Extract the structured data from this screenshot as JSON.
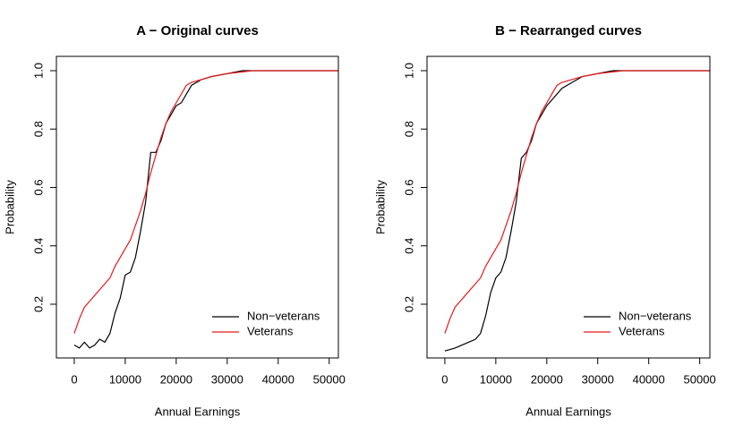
{
  "chart_data": [
    {
      "type": "line",
      "title": "A − Original curves",
      "x_label": "Annual Earnings",
      "y_label": "Probability",
      "xlim": [
        -3500,
        51800
      ],
      "ylim": [
        0.016,
        1.049
      ],
      "xticks": [
        0,
        10000,
        20000,
        30000,
        40000,
        50000
      ],
      "yticks": [
        0.2,
        0.4,
        0.6,
        0.8,
        {
          "value": 1,
          "label": "1.0"
        }
      ],
      "legend": "bottomright",
      "series": [
        {
          "name": "Non−veterans",
          "color": "#000000",
          "x": [
            0,
            1000,
            2000,
            3000,
            4000,
            5000,
            6000,
            7000,
            8000,
            9000,
            10000,
            11000,
            12000,
            13000,
            14000,
            15000,
            16000,
            17000,
            18000,
            19000,
            20000,
            21000,
            22000,
            23000,
            24000,
            25000,
            27000,
            30000,
            33000,
            36000,
            52000
          ],
          "values": [
            0.06,
            0.05,
            0.07,
            0.05,
            0.06,
            0.08,
            0.07,
            0.1,
            0.17,
            0.22,
            0.3,
            0.31,
            0.36,
            0.45,
            0.55,
            0.72,
            0.72,
            0.76,
            0.82,
            0.85,
            0.88,
            0.89,
            0.92,
            0.95,
            0.96,
            0.97,
            0.98,
            0.99,
            1,
            1,
            1
          ]
        },
        {
          "name": "Veterans",
          "color": "#e41a1c",
          "x": [
            0,
            1000,
            2000,
            3000,
            4000,
            5000,
            6000,
            7000,
            8000,
            9000,
            10000,
            11000,
            12000,
            13000,
            14000,
            15000,
            16000,
            17000,
            18000,
            19000,
            20000,
            21000,
            22000,
            23000,
            25000,
            27000,
            30000,
            35000,
            52000
          ],
          "values": [
            0.1,
            0.15,
            0.19,
            0.21,
            0.23,
            0.25,
            0.27,
            0.29,
            0.33,
            0.36,
            0.39,
            0.42,
            0.47,
            0.52,
            0.58,
            0.65,
            0.71,
            0.77,
            0.82,
            0.86,
            0.89,
            0.92,
            0.95,
            0.96,
            0.97,
            0.98,
            0.99,
            1,
            1
          ]
        }
      ]
    },
    {
      "type": "line",
      "title": "B − Rearranged curves",
      "x_label": "Annual Earnings",
      "y_label": "Probability",
      "xlim": [
        -3500,
        52000
      ],
      "ylim": [
        0.016,
        1.049
      ],
      "xticks": [
        0,
        10000,
        20000,
        30000,
        40000,
        50000
      ],
      "yticks": [
        0.2,
        0.4,
        0.6,
        0.8,
        {
          "value": 1,
          "label": "1.0"
        }
      ],
      "legend": "bottomright",
      "series": [
        {
          "name": "Non−veterans",
          "color": "#000000",
          "x": [
            0,
            2000,
            4000,
            6000,
            7000,
            8000,
            9000,
            10000,
            11000,
            12000,
            13000,
            14000,
            15000,
            16000,
            17000,
            18000,
            19000,
            20000,
            21000,
            22000,
            23000,
            25000,
            27000,
            30000,
            33000,
            52000
          ],
          "values": [
            0.04,
            0.05,
            0.065,
            0.08,
            0.1,
            0.16,
            0.24,
            0.29,
            0.31,
            0.36,
            0.45,
            0.55,
            0.7,
            0.72,
            0.76,
            0.82,
            0.85,
            0.88,
            0.9,
            0.92,
            0.94,
            0.96,
            0.98,
            0.99,
            1,
            1
          ]
        },
        {
          "name": "Veterans",
          "color": "#e41a1c",
          "x": [
            0,
            1000,
            2000,
            3000,
            4000,
            5000,
            6000,
            7000,
            8000,
            9000,
            10000,
            11000,
            12000,
            13000,
            14000,
            15000,
            16000,
            17000,
            18000,
            19000,
            20000,
            21000,
            22000,
            23000,
            25000,
            27000,
            30000,
            35000,
            52000
          ],
          "values": [
            0.1,
            0.15,
            0.19,
            0.21,
            0.23,
            0.25,
            0.27,
            0.29,
            0.33,
            0.36,
            0.39,
            0.42,
            0.47,
            0.52,
            0.58,
            0.65,
            0.71,
            0.77,
            0.82,
            0.86,
            0.89,
            0.92,
            0.95,
            0.96,
            0.97,
            0.98,
            0.99,
            1,
            1
          ]
        }
      ]
    }
  ]
}
